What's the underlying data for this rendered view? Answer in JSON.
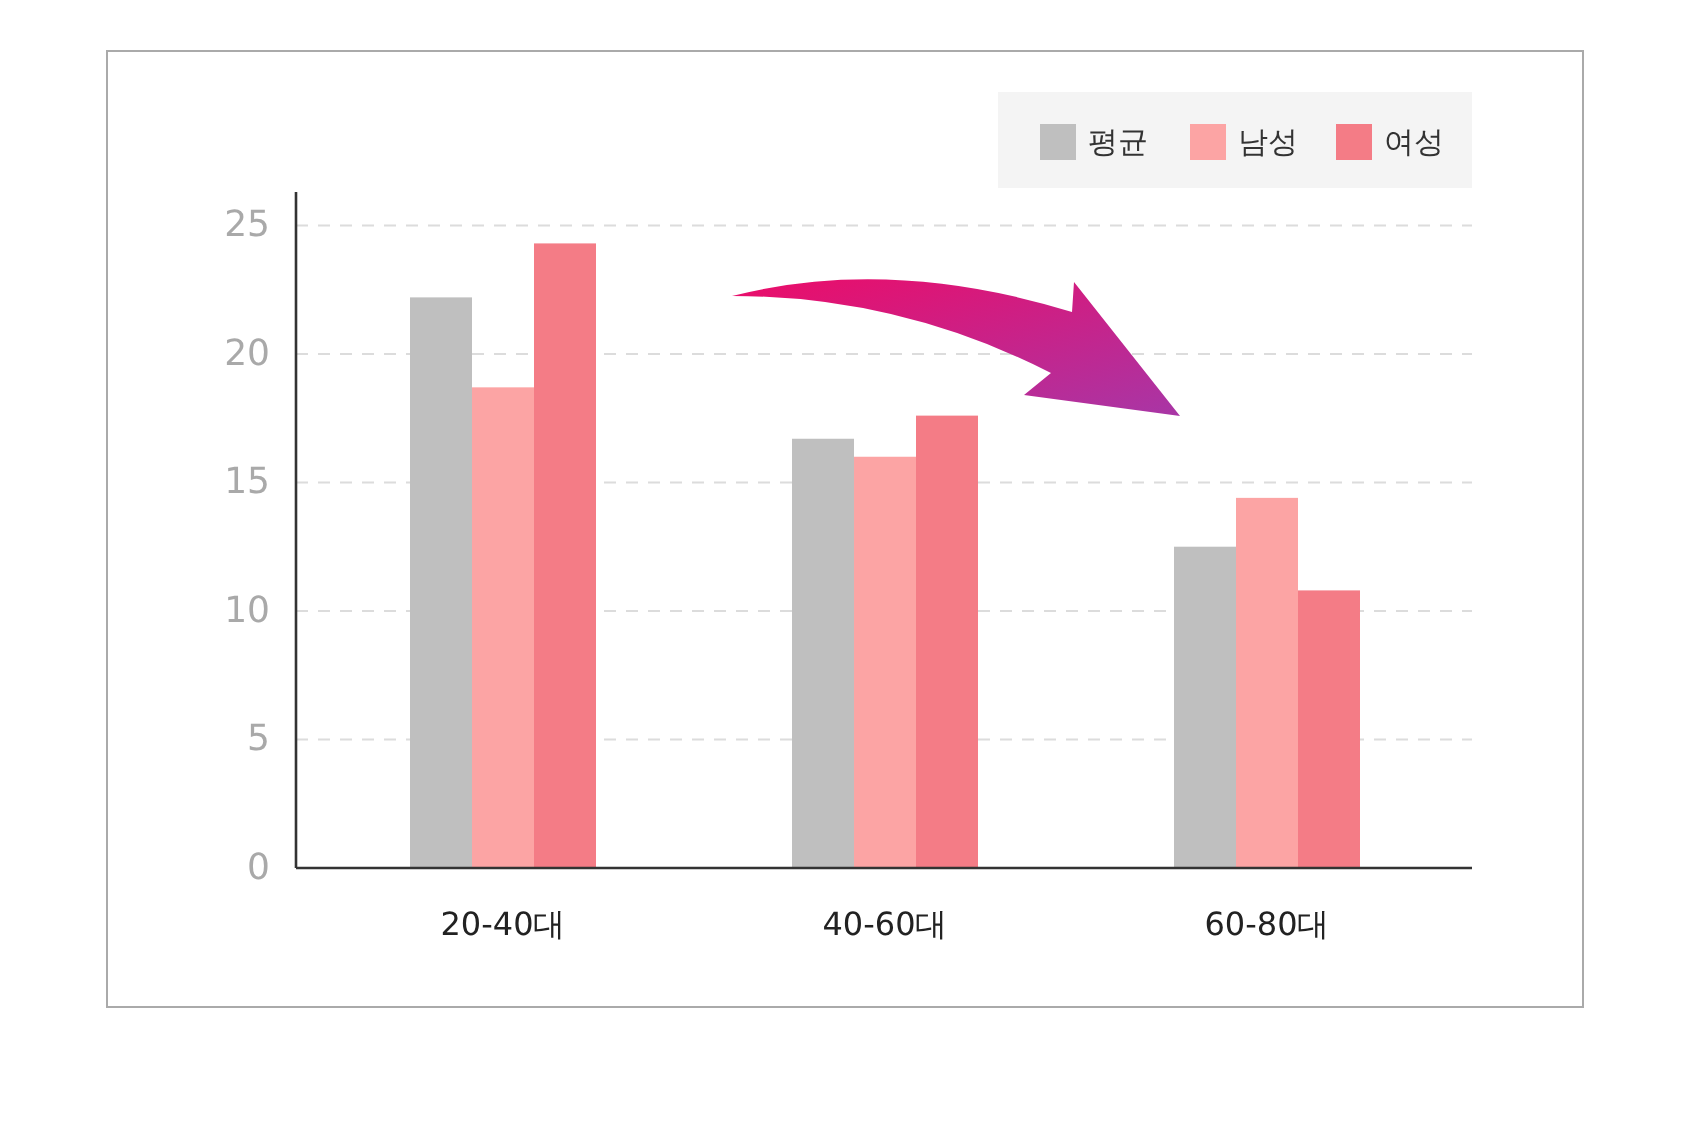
{
  "chart_data": {
    "type": "bar",
    "categories": [
      "20-40대",
      "40-60대",
      "60-80대"
    ],
    "series": [
      {
        "name": "평균",
        "color": "#bfbfbf",
        "values": [
          22.2,
          16.7,
          12.5
        ]
      },
      {
        "name": "남성",
        "color": "#fca4a4",
        "values": [
          18.7,
          16.0,
          14.4
        ]
      },
      {
        "name": "여성",
        "color": "#f47c86",
        "values": [
          24.3,
          17.6,
          10.8
        ]
      }
    ],
    "ylim": [
      0,
      26.3
    ],
    "yticks": [
      0,
      5,
      10,
      15,
      20,
      25
    ],
    "grid": "y",
    "legend": "top right"
  }
}
